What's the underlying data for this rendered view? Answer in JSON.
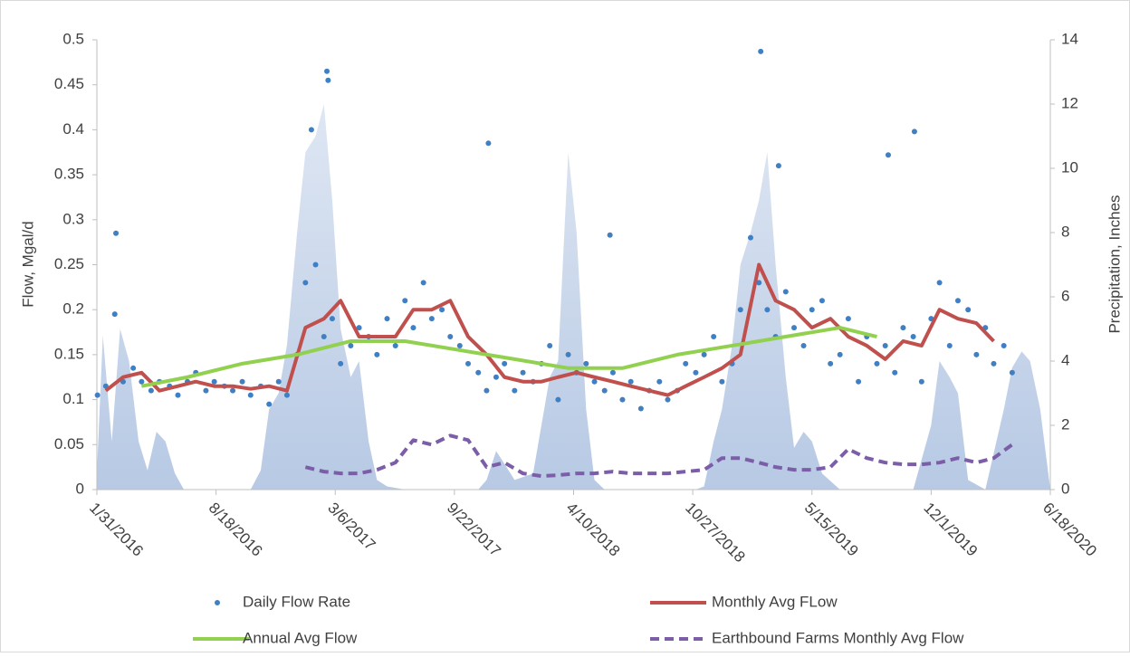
{
  "chart_data": {
    "type": "combo",
    "y_label": "Flow, Mgal/d",
    "y2_label": "Precipitation, Inches",
    "xlim": [
      "1/31/2016",
      "6/18/2020"
    ],
    "xticks": [
      "1/31/2016",
      "8/18/2016",
      "3/6/2017",
      "9/22/2017",
      "4/10/2018",
      "10/27/2018",
      "5/15/2019",
      "12/1/2019",
      "6/18/2020"
    ],
    "ylim": [
      0,
      0.5
    ],
    "yticks": [
      0,
      0.05,
      0.1,
      0.15,
      0.2,
      0.25,
      0.3,
      0.35,
      0.4,
      0.45,
      0.5
    ],
    "y2lim": [
      0,
      14
    ],
    "y2ticks": [
      0,
      2,
      4,
      6,
      8,
      10,
      12,
      14
    ],
    "series": [
      {
        "name": "Daily Flow Rate",
        "type": "scatter",
        "color": "#3f7fc4",
        "x": [
          "2/1/2016",
          "2/15/2016",
          "3/1/2016",
          "3/15/2016",
          "4/1/2016",
          "4/15/2016",
          "5/1/2016",
          "5/15/2016",
          "6/1/2016",
          "6/15/2016",
          "7/1/2016",
          "7/15/2016",
          "8/1/2016",
          "8/15/2016",
          "9/1/2016",
          "9/15/2016",
          "10/1/2016",
          "10/15/2016",
          "11/1/2016",
          "11/15/2016",
          "12/1/2016",
          "12/15/2016",
          "1/1/2017",
          "1/15/2017",
          "2/1/2017",
          "2/15/2017",
          "3/1/2017",
          "3/15/2017",
          "4/1/2017",
          "4/15/2017",
          "5/1/2017",
          "5/15/2017",
          "6/1/2017",
          "6/15/2017",
          "7/1/2017",
          "7/15/2017",
          "8/1/2017",
          "8/15/2017",
          "9/1/2017",
          "9/15/2017",
          "10/1/2017",
          "10/15/2017",
          "11/1/2017",
          "11/15/2017",
          "12/1/2017",
          "12/15/2017",
          "1/1/2018",
          "1/15/2018",
          "2/1/2018",
          "2/15/2018",
          "3/1/2018",
          "3/15/2018",
          "4/1/2018",
          "4/15/2018",
          "5/1/2018",
          "5/15/2018",
          "6/1/2018",
          "6/15/2018",
          "7/1/2018",
          "7/15/2018",
          "8/1/2018",
          "8/15/2018",
          "9/1/2018",
          "9/15/2018",
          "10/1/2018",
          "10/15/2018",
          "11/1/2018",
          "11/15/2018",
          "12/1/2018",
          "12/15/2018",
          "1/1/2019",
          "1/15/2019",
          "2/1/2019",
          "2/15/2019",
          "3/1/2019",
          "3/15/2019",
          "4/1/2019",
          "4/15/2019",
          "5/1/2019",
          "5/15/2019",
          "6/1/2019",
          "6/15/2019",
          "7/1/2019",
          "7/15/2019",
          "8/1/2019",
          "8/15/2019",
          "9/1/2019",
          "9/15/2019",
          "10/1/2019",
          "10/15/2019",
          "11/1/2019",
          "11/15/2019",
          "12/1/2019",
          "12/15/2019",
          "1/1/2020",
          "1/15/2020",
          "2/1/2020",
          "2/15/2020",
          "3/1/2020",
          "3/15/2020",
          "4/1/2020",
          "4/15/2020",
          "3/3/2016",
          "2/20/2017",
          "2/22/2017",
          "1/25/2017",
          "2/18/2019",
          "11/18/2017",
          "11/3/2019",
          "9/20/2019",
          "3/20/2019",
          "6/10/2018"
        ],
        "values": [
          0.105,
          0.115,
          0.195,
          0.12,
          0.135,
          0.12,
          0.11,
          0.12,
          0.115,
          0.105,
          0.12,
          0.13,
          0.11,
          0.12,
          0.115,
          0.11,
          0.12,
          0.105,
          0.115,
          0.095,
          0.12,
          0.105,
          0.15,
          0.23,
          0.25,
          0.17,
          0.19,
          0.14,
          0.16,
          0.18,
          0.17,
          0.15,
          0.19,
          0.16,
          0.21,
          0.18,
          0.23,
          0.19,
          0.2,
          0.17,
          0.16,
          0.14,
          0.13,
          0.11,
          0.125,
          0.14,
          0.11,
          0.13,
          0.12,
          0.14,
          0.16,
          0.1,
          0.15,
          0.13,
          0.14,
          0.12,
          0.11,
          0.13,
          0.1,
          0.12,
          0.09,
          0.11,
          0.12,
          0.1,
          0.11,
          0.14,
          0.13,
          0.15,
          0.17,
          0.12,
          0.14,
          0.2,
          0.28,
          0.23,
          0.2,
          0.17,
          0.22,
          0.18,
          0.16,
          0.2,
          0.21,
          0.14,
          0.15,
          0.19,
          0.12,
          0.17,
          0.14,
          0.16,
          0.13,
          0.18,
          0.17,
          0.12,
          0.19,
          0.23,
          0.16,
          0.21,
          0.2,
          0.15,
          0.18,
          0.14,
          0.16,
          0.13,
          0.285,
          0.465,
          0.455,
          0.4,
          0.487,
          0.385,
          0.398,
          0.372,
          0.36,
          0.283
        ]
      },
      {
        "name": "Monthly Avg FLow",
        "type": "line",
        "color": "#c0504d",
        "x": [
          "2/15/2016",
          "3/15/2016",
          "4/15/2016",
          "5/15/2016",
          "6/15/2016",
          "7/15/2016",
          "8/15/2016",
          "9/15/2016",
          "10/15/2016",
          "11/15/2016",
          "12/15/2016",
          "1/15/2017",
          "2/15/2017",
          "3/15/2017",
          "4/15/2017",
          "5/15/2017",
          "6/15/2017",
          "7/15/2017",
          "8/15/2017",
          "9/15/2017",
          "10/15/2017",
          "11/15/2017",
          "12/15/2017",
          "1/15/2018",
          "2/15/2018",
          "3/15/2018",
          "4/15/2018",
          "5/15/2018",
          "6/15/2018",
          "7/15/2018",
          "8/15/2018",
          "9/15/2018",
          "10/15/2018",
          "11/15/2018",
          "12/15/2018",
          "1/15/2019",
          "2/15/2019",
          "3/15/2019",
          "4/15/2019",
          "5/15/2019",
          "6/15/2019",
          "7/15/2019",
          "8/15/2019",
          "9/15/2019",
          "10/15/2019",
          "11/15/2019",
          "12/15/2019",
          "1/15/2020",
          "2/15/2020",
          "3/15/2020"
        ],
        "values": [
          0.11,
          0.125,
          0.13,
          0.11,
          0.115,
          0.12,
          0.115,
          0.115,
          0.112,
          0.115,
          0.11,
          0.18,
          0.19,
          0.21,
          0.17,
          0.17,
          0.17,
          0.2,
          0.2,
          0.21,
          0.17,
          0.15,
          0.125,
          0.12,
          0.12,
          0.125,
          0.13,
          0.125,
          0.12,
          0.115,
          0.11,
          0.105,
          0.115,
          0.125,
          0.135,
          0.15,
          0.25,
          0.21,
          0.2,
          0.18,
          0.19,
          0.17,
          0.16,
          0.145,
          0.165,
          0.16,
          0.2,
          0.19,
          0.185,
          0.165
        ]
      },
      {
        "name": "Annual Avg Flow",
        "type": "line",
        "color": "#92d050",
        "x": [
          "4/15/2016",
          "7/1/2016",
          "10/1/2016",
          "1/1/2017",
          "4/1/2017",
          "7/1/2017",
          "10/1/2017",
          "1/1/2018",
          "4/1/2018",
          "7/1/2018",
          "10/1/2018",
          "1/1/2019",
          "4/1/2019",
          "7/1/2019",
          "9/1/2019"
        ],
        "values": [
          0.115,
          0.125,
          0.14,
          0.15,
          0.165,
          0.165,
          0.155,
          0.145,
          0.135,
          0.135,
          0.15,
          0.16,
          0.17,
          0.18,
          0.17
        ]
      },
      {
        "name": "Earthbound Farms Monthly Avg Flow",
        "type": "line",
        "dashed": true,
        "color": "#7b5ea7",
        "x": [
          "1/15/2017",
          "2/15/2017",
          "3/15/2017",
          "4/15/2017",
          "5/15/2017",
          "6/15/2017",
          "7/15/2017",
          "8/15/2017",
          "9/15/2017",
          "10/15/2017",
          "11/15/2017",
          "12/15/2017",
          "1/15/2018",
          "2/15/2018",
          "3/15/2018",
          "4/15/2018",
          "5/15/2018",
          "6/15/2018",
          "7/15/2018",
          "8/15/2018",
          "9/15/2018",
          "10/15/2018",
          "11/15/2018",
          "12/15/2018",
          "1/15/2019",
          "2/15/2019",
          "3/15/2019",
          "4/15/2019",
          "5/15/2019",
          "6/15/2019",
          "7/15/2019",
          "8/15/2019",
          "9/15/2019",
          "10/15/2019",
          "11/15/2019",
          "12/15/2019",
          "1/15/2020",
          "2/15/2020",
          "3/15/2020",
          "4/15/2020"
        ],
        "values": [
          0.025,
          0.02,
          0.018,
          0.018,
          0.022,
          0.03,
          0.055,
          0.05,
          0.06,
          0.055,
          0.025,
          0.03,
          0.018,
          0.015,
          0.016,
          0.018,
          0.018,
          0.02,
          0.018,
          0.018,
          0.018,
          0.02,
          0.022,
          0.035,
          0.035,
          0.03,
          0.025,
          0.022,
          0.022,
          0.025,
          0.045,
          0.035,
          0.03,
          0.028,
          0.028,
          0.03,
          0.035,
          0.03,
          0.035,
          0.05
        ]
      },
      {
        "type": "area",
        "axis": "y2",
        "color": "#b7c9e4",
        "x": [
          "1/31/2016",
          "2/10/2016",
          "2/25/2016",
          "3/10/2016",
          "3/25/2016",
          "4/10/2016",
          "4/25/2016",
          "5/10/2016",
          "5/25/2016",
          "6/10/2016",
          "6/25/2016",
          "10/15/2016",
          "11/1/2016",
          "11/15/2016",
          "12/1/2016",
          "12/15/2016",
          "1/1/2017",
          "1/15/2017",
          "2/1/2017",
          "2/15/2017",
          "3/1/2017",
          "3/15/2017",
          "4/1/2017",
          "4/15/2017",
          "5/1/2017",
          "5/15/2017",
          "6/1/2017",
          "7/1/2017",
          "11/1/2017",
          "11/15/2017",
          "12/1/2017",
          "12/15/2017",
          "1/1/2018",
          "2/1/2018",
          "3/1/2018",
          "3/15/2018",
          "4/1/2018",
          "4/15/2018",
          "5/1/2018",
          "5/15/2018",
          "6/1/2018",
          "11/1/2018",
          "11/15/2018",
          "12/1/2018",
          "12/15/2018",
          "1/1/2019",
          "1/15/2019",
          "2/1/2019",
          "2/15/2019",
          "3/1/2019",
          "3/15/2019",
          "4/1/2019",
          "4/15/2019",
          "5/1/2019",
          "5/15/2019",
          "6/1/2019",
          "7/1/2019",
          "11/1/2019",
          "12/1/2019",
          "12/15/2019",
          "1/1/2020",
          "1/15/2020",
          "2/1/2020",
          "3/1/2020",
          "4/1/2020",
          "4/15/2020",
          "5/1/2020",
          "5/15/2020",
          "6/1/2020",
          "6/18/2020"
        ],
        "values": [
          0.5,
          4.8,
          1.5,
          5,
          4,
          1.5,
          0.6,
          1.8,
          1.5,
          0.5,
          0,
          0,
          0.6,
          2.5,
          3,
          4.5,
          8,
          10.5,
          11,
          12,
          9,
          5,
          3.5,
          4,
          1.5,
          0.3,
          0.1,
          0,
          0,
          0.3,
          1.2,
          0.8,
          0.3,
          0.5,
          3.5,
          4,
          10.5,
          8,
          2.5,
          0.3,
          0,
          0,
          0.1,
          1.5,
          2.5,
          4.5,
          7,
          8,
          9,
          10.5,
          7,
          3.5,
          1.3,
          1.8,
          1.5,
          0.5,
          0,
          0,
          2,
          4,
          3.5,
          3,
          0.3,
          0,
          2.5,
          3.8,
          4.3,
          4,
          2.5,
          0
        ]
      }
    ]
  }
}
